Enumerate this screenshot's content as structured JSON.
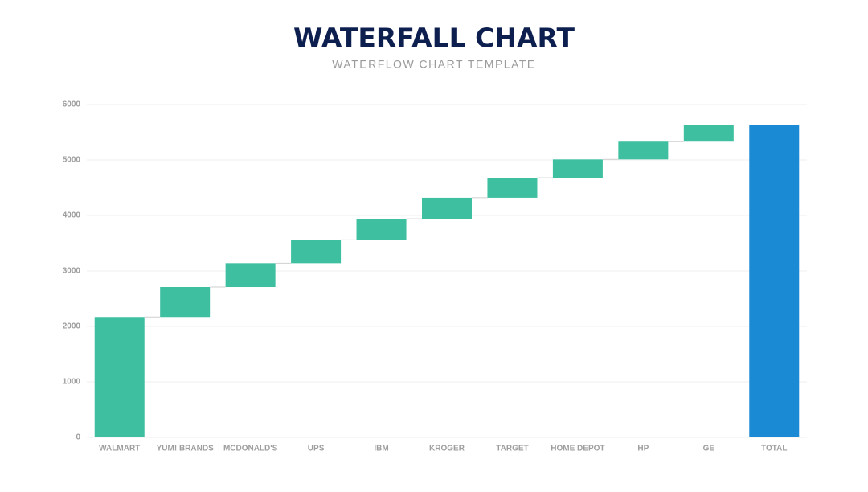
{
  "chart_data": {
    "type": "waterfall",
    "title": "WATERFALL CHART",
    "subtitle": "WATERFLOW CHART TEMPLATE",
    "categories": [
      "WALMART",
      "YUM! BRANDS",
      "MCDONALD'S",
      "UPS",
      "IBM",
      "KROGER",
      "TARGET",
      "HOME DEPOT",
      "HP",
      "GE",
      "TOTAL"
    ],
    "values": [
      2170,
      540,
      430,
      420,
      380,
      380,
      360,
      330,
      320,
      300,
      5630
    ],
    "measures": [
      "absolute",
      "relative",
      "relative",
      "relative",
      "relative",
      "relative",
      "relative",
      "relative",
      "relative",
      "relative",
      "total"
    ],
    "color": "#3dbfa0",
    "total_color": "#1a8ad4",
    "ylim": [
      0,
      6000
    ],
    "yticks": [
      0,
      1000,
      2000,
      3000,
      4000,
      5000,
      6000
    ],
    "grid": true
  }
}
